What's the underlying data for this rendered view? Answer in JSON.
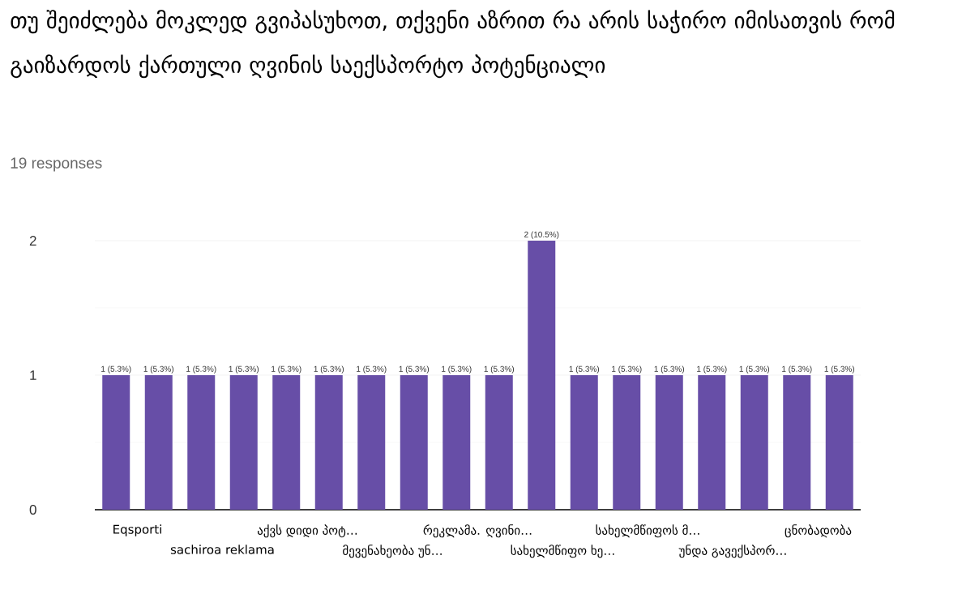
{
  "chart_data": {
    "type": "bar",
    "title": "თუ შეიძლება მოკლედ გვიპასუხოთ, თქვენი აზრით რა არის საჭირო იმისათვის რომ გაიზარდოს ქართული ღვინის საექსპორტო პოტენციალი",
    "subtitle": "19 responses",
    "categories": [
      "Eqsporti",
      null,
      "sachiroa reklama",
      null,
      "აქვს დიდი პოტ…",
      null,
      "მევენახეობა უნ…",
      null,
      "რეკლამა. ღვინი…",
      null,
      "სახელმწიფო ხე…",
      null,
      "სახელმწიფოს მ…",
      null,
      "უნდა გავექსპორ…",
      null,
      "ცნობადობა",
      null
    ],
    "values": [
      1,
      1,
      1,
      1,
      1,
      1,
      1,
      1,
      1,
      1,
      2,
      1,
      1,
      1,
      1,
      1,
      1,
      1
    ],
    "value_labels": [
      "1 (5.3%)",
      "1 (5.3%)",
      "1 (5.3%)",
      "1 (5.3%)",
      "1 (5.3%)",
      "1 (5.3%)",
      "1 (5.3%)",
      "1 (5.3%)",
      "1 (5.3%)",
      "1 (5.3%)",
      "2 (10.5%)",
      "1 (5.3%)",
      "1 (5.3%)",
      "1 (5.3%)",
      "1 (5.3%)",
      "1 (5.3%)",
      "1 (5.3%)",
      "1 (5.3%)"
    ],
    "color": "#674ea7",
    "ylim": [
      0,
      2
    ],
    "yticks": [
      0,
      1,
      2
    ],
    "grid": "y"
  }
}
